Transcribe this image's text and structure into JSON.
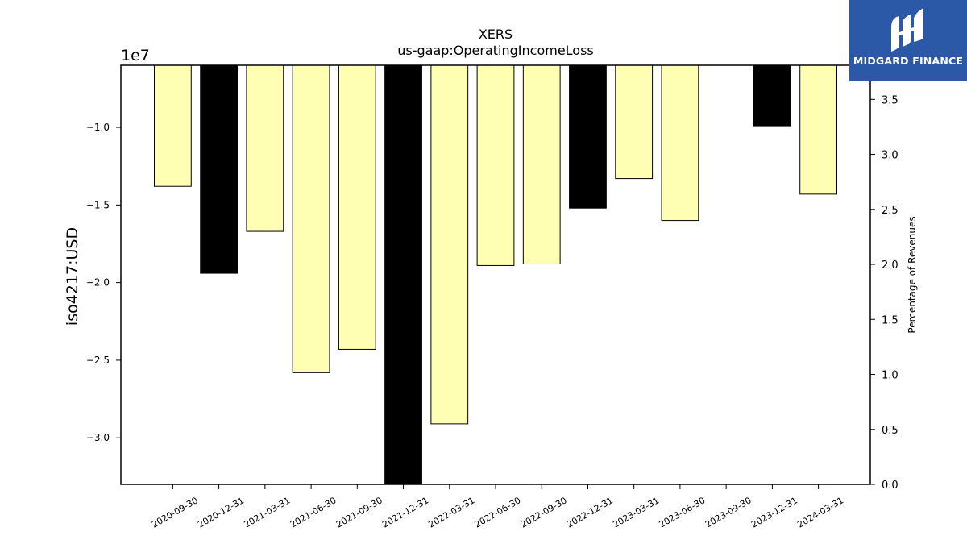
{
  "chart_data": {
    "type": "bar",
    "title": "XERS",
    "subtitle": "us-gaap:OperatingIncomeLoss",
    "ylabel": "iso4217:USD",
    "y2label": "Percentage of Revenues",
    "offset_label": "1e7",
    "ylim": [
      -3.3,
      -0.6
    ],
    "y2lim": [
      0.0,
      3.81
    ],
    "yticks": [
      -1.0,
      -1.5,
      -2.0,
      -2.5,
      -3.0
    ],
    "ytick_labels": [
      "−1.0",
      "−1.5",
      "−2.0",
      "−2.5",
      "−3.0"
    ],
    "y2ticks": [
      0.0,
      0.5,
      1.0,
      1.5,
      2.0,
      2.5,
      3.0,
      3.5
    ],
    "y2tick_labels": [
      "0.0",
      "0.5",
      "1.0",
      "1.5",
      "2.0",
      "2.5",
      "3.0",
      "3.5"
    ],
    "categories": [
      "2020-09-30",
      "2020-12-31",
      "2021-03-31",
      "2021-06-30",
      "2021-09-30",
      "2021-12-31",
      "2022-03-31",
      "2022-06-30",
      "2022-09-30",
      "2022-12-31",
      "2023-03-31",
      "2023-06-30",
      "2023-09-30",
      "2023-12-31",
      "2024-03-31"
    ],
    "values": [
      -1.38,
      -1.94,
      -1.67,
      -2.58,
      -2.43,
      -3.3,
      -2.91,
      -1.89,
      -1.88,
      -1.52,
      -1.33,
      -1.6,
      null,
      -0.99,
      -1.43
    ],
    "bar_colors": [
      "#ffffb3",
      "#000000",
      "#ffffb3",
      "#ffffb3",
      "#ffffb3",
      "#000000",
      "#ffffb3",
      "#ffffb3",
      "#ffffb3",
      "#000000",
      "#ffffb3",
      "#ffffb3",
      "#ffffb3",
      "#000000",
      "#ffffb3"
    ]
  },
  "logo": {
    "text": "MIDGARD FINANCE",
    "background": "#2b59a8"
  }
}
